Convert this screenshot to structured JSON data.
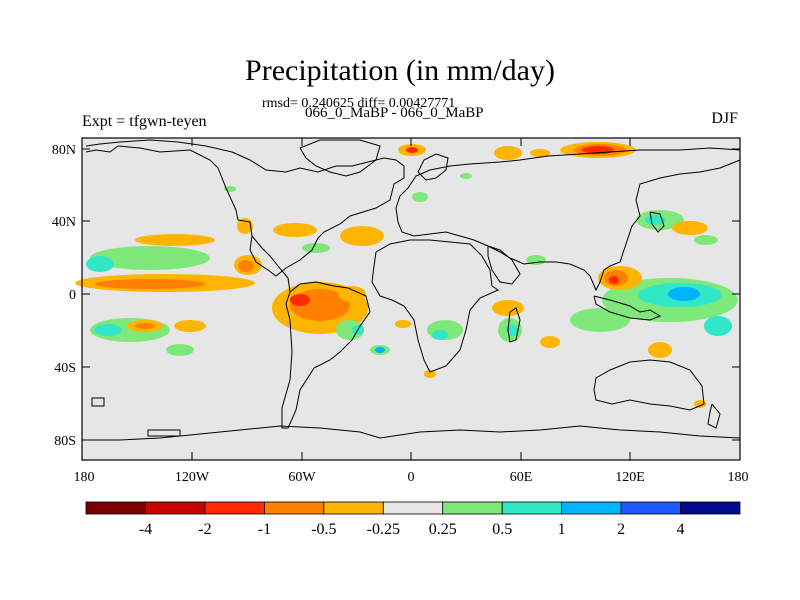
{
  "header": {
    "title": "Precipitation (in mm/day)",
    "stats": "rmsd= 0.240625 diff= 0.00427771",
    "comparison": "066_0_MaBP - 066_0_MaBP",
    "experiment": "Expt = tfgwn-teyen",
    "season": "DJF"
  },
  "axes": {
    "x_ticks": [
      "180",
      "120W",
      "60W",
      "0",
      "60E",
      "120E",
      "180"
    ],
    "y_ticks": [
      "80N",
      "40N",
      "0",
      "40S",
      "80S"
    ]
  },
  "colorbar": {
    "colors": [
      "#7a0000",
      "#c80000",
      "#ff2a00",
      "#ff7f00",
      "#ffb400",
      "#e6e6e6",
      "#7fe87a",
      "#30e8c8",
      "#00b4ff",
      "#1e5aff",
      "#000a8c"
    ],
    "labels": [
      "-4",
      "-2",
      "-1",
      "-0.5",
      "-0.25",
      "0.25",
      "0.5",
      "1",
      "2",
      "4"
    ]
  },
  "map": {
    "background_color": "#e6e6e6",
    "coastline_color": "#000000"
  }
}
